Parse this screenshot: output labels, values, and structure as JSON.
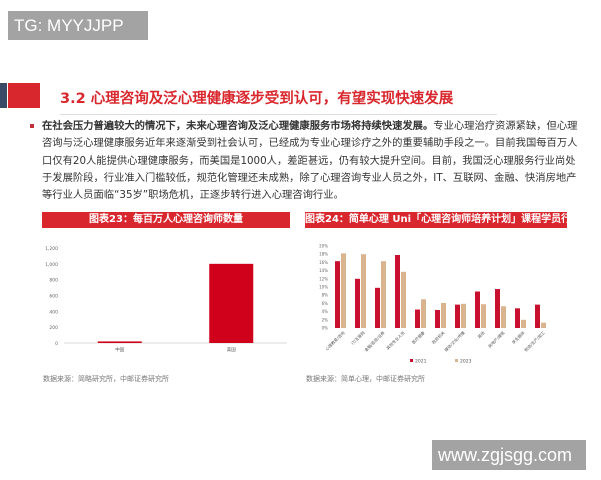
{
  "watermarks": {
    "top_left": "TG: MYYJJPP",
    "bottom_right": "www.zgjsgg.com"
  },
  "section": {
    "title": "3.2 心理咨询及泛心理健康逐步受到认可，有望实现快速发展"
  },
  "paragraph": {
    "bold": "在社会压力普遍较大的情况下，未来心理咨询及泛心理健康服务市场将持续快速发展。",
    "body": "专业心理治疗资源紧缺，但心理咨询与泛心理健康服务近年来逐渐受到社会认可，已经成为专业心理诊疗之外的重要辅助手段之一。目前我国每百万人口仅有20人能提供心理健康服务，而美国是1000人，差距甚远，仍有较大提升空间。目前，我国泛心理服务行业尚处于发展阶段，行业准入门槛较低，规范化管理还未成熟，除了心理咨询专业人员之外，IT、互联网、金融、快消房地产等行业人员面临“35岁”职场危机，正逐步转行进入心理咨询行业。"
  },
  "colors": {
    "accent": "#d9272e",
    "series_2021": "#c8102e",
    "series_2023": "#d9b48f"
  },
  "chart_data": [
    {
      "type": "bar",
      "title": "图表23：每百万人心理咨询师数量",
      "categories": [
        "中国",
        "美国"
      ],
      "values": [
        20,
        1000
      ],
      "ylim": [
        0,
        1200
      ],
      "yticks": [
        "0",
        "200",
        "400",
        "600",
        "800",
        "1,000",
        "1,200"
      ],
      "source": "数据来源：简略研究所，中邮证券研究所"
    },
    {
      "type": "bar",
      "title": "图表24：简单心理 Uni「心理咨询师培养计划」课程学员行业分布",
      "categories": [
        "心理教育/咨询",
        "IT/互联网",
        "金融/投资/证券",
        "其他专业人员",
        "医疗健康",
        "政府机关",
        "媒体/文化/传播",
        "其他",
        "房地产/建筑",
        "学生群体",
        "制造/生产/加工"
      ],
      "series": [
        {
          "name": "2021",
          "values": [
            16.3,
            12,
            9.8,
            17.8,
            4.5,
            4.4,
            5.7,
            8.9,
            9.5,
            4.8,
            5.7
          ]
        },
        {
          "name": "2023",
          "values": [
            18.2,
            18,
            16.3,
            13.7,
            7,
            6.1,
            5.9,
            5.8,
            5.3,
            2,
            1.3
          ]
        }
      ],
      "ylim": [
        0,
        20
      ],
      "yticks": [
        "0%",
        "2%",
        "4%",
        "6%",
        "8%",
        "10%",
        "12%",
        "14%",
        "16%",
        "18%",
        "20%"
      ],
      "legend": "bottom",
      "source": "数据来源：简单心理，中邮证券研究所"
    }
  ]
}
